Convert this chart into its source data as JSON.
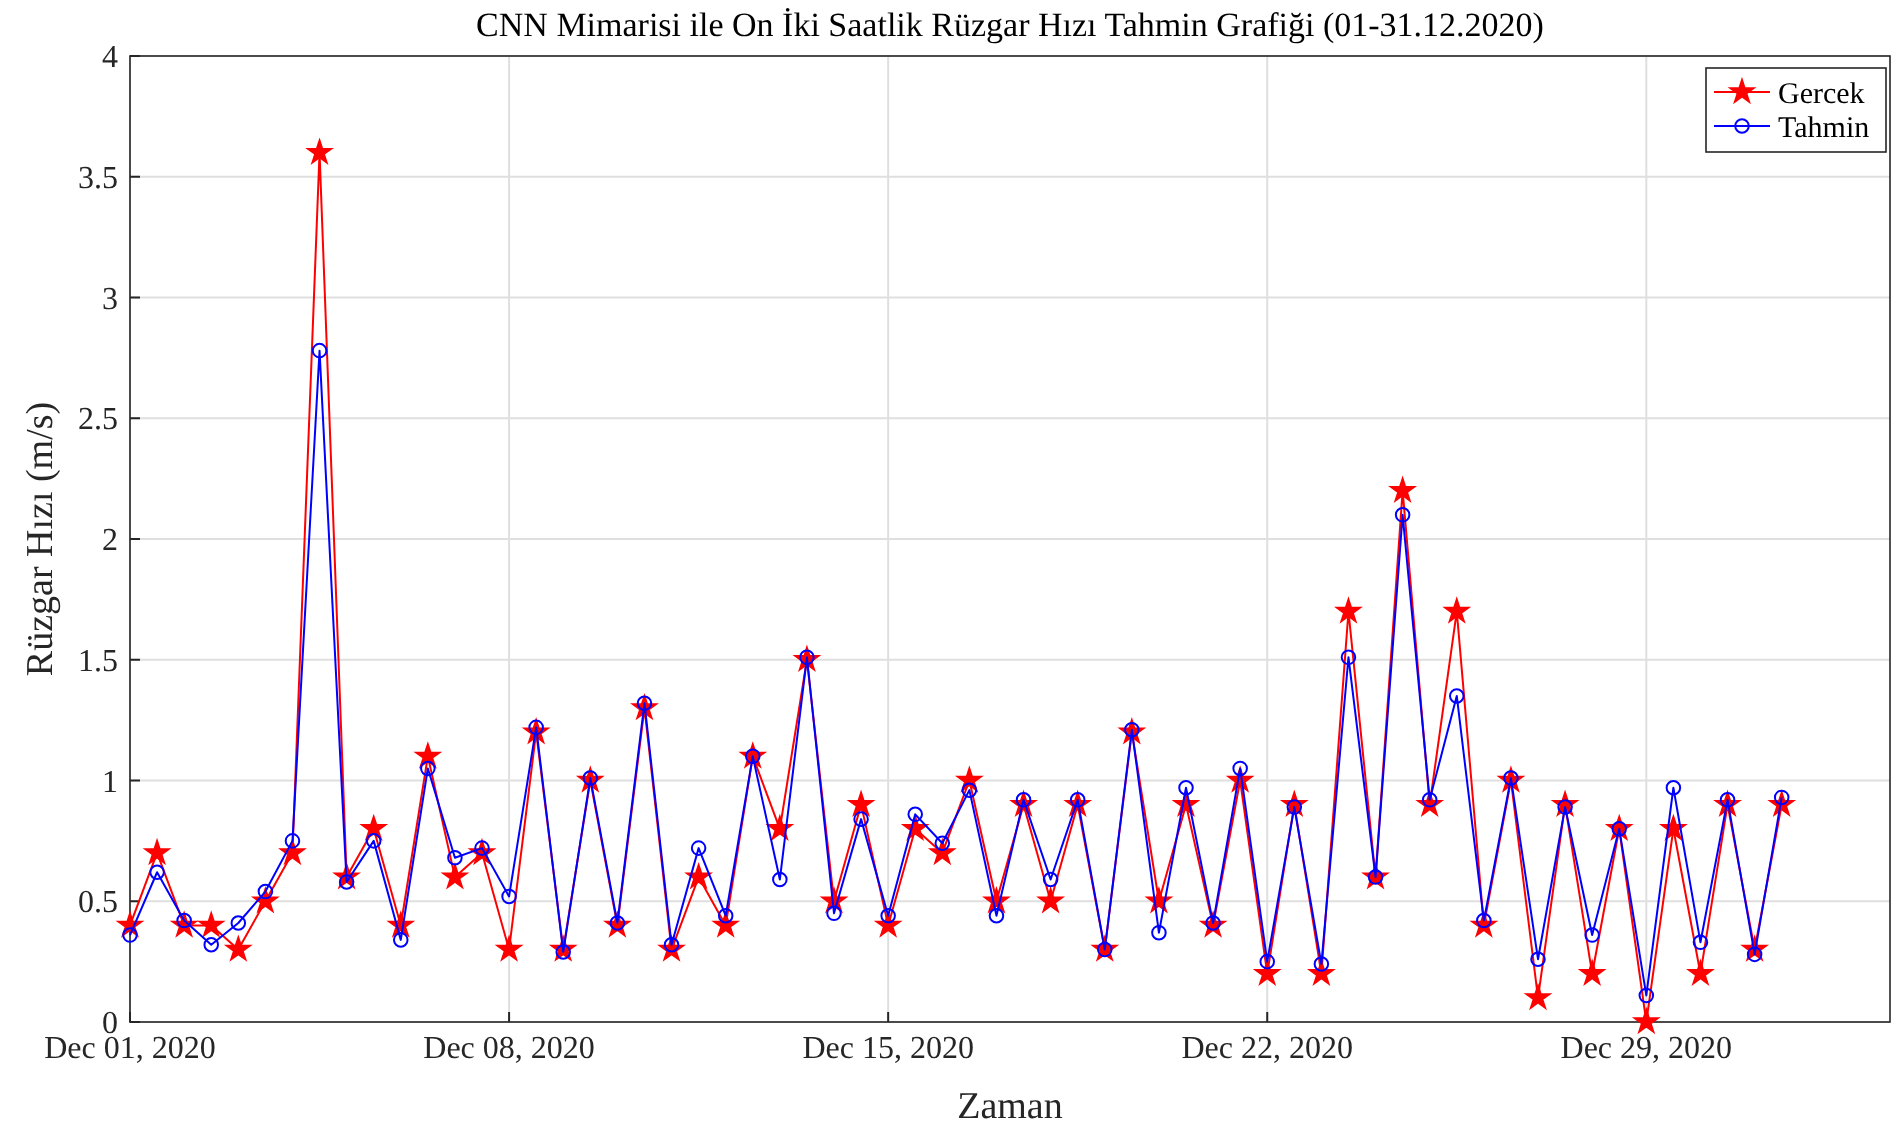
{
  "chart_data": {
    "type": "line",
    "title": "CNN Mimarisi ile On İki Saatlik Rüzgar Hızı Tahmin Grafiği (01-31.12.2020)",
    "xlabel": "Zaman",
    "ylabel": "Rüzgar Hızı (m/s)",
    "x": [
      "2020-12-01T00:00",
      "2020-12-01T12:00",
      "2020-12-02T00:00",
      "2020-12-02T12:00",
      "2020-12-03T00:00",
      "2020-12-03T12:00",
      "2020-12-04T00:00",
      "2020-12-04T12:00",
      "2020-12-05T00:00",
      "2020-12-05T12:00",
      "2020-12-06T00:00",
      "2020-12-06T12:00",
      "2020-12-07T00:00",
      "2020-12-07T12:00",
      "2020-12-08T00:00",
      "2020-12-08T12:00",
      "2020-12-09T00:00",
      "2020-12-09T12:00",
      "2020-12-10T00:00",
      "2020-12-10T12:00",
      "2020-12-11T00:00",
      "2020-12-11T12:00",
      "2020-12-12T00:00",
      "2020-12-12T12:00",
      "2020-12-13T00:00",
      "2020-12-13T12:00",
      "2020-12-14T00:00",
      "2020-12-14T12:00",
      "2020-12-15T00:00",
      "2020-12-15T12:00",
      "2020-12-16T00:00",
      "2020-12-16T12:00",
      "2020-12-17T00:00",
      "2020-12-17T12:00",
      "2020-12-18T00:00",
      "2020-12-18T12:00",
      "2020-12-19T00:00",
      "2020-12-19T12:00",
      "2020-12-20T00:00",
      "2020-12-20T12:00",
      "2020-12-21T00:00",
      "2020-12-21T12:00",
      "2020-12-22T00:00",
      "2020-12-22T12:00",
      "2020-12-23T00:00",
      "2020-12-23T12:00",
      "2020-12-24T00:00",
      "2020-12-24T12:00",
      "2020-12-25T00:00",
      "2020-12-25T12:00",
      "2020-12-26T00:00",
      "2020-12-26T12:00",
      "2020-12-27T00:00",
      "2020-12-27T12:00",
      "2020-12-28T00:00",
      "2020-12-28T12:00",
      "2020-12-29T00:00",
      "2020-12-29T12:00",
      "2020-12-30T00:00",
      "2020-12-30T12:00",
      "2020-12-31T00:00",
      "2020-12-31T12:00"
    ],
    "series": [
      {
        "name": "Gercek",
        "color": "#ff0000",
        "marker": "star",
        "values": [
          0.4,
          0.7,
          0.4,
          0.4,
          0.3,
          0.5,
          0.7,
          3.6,
          0.6,
          0.8,
          0.4,
          1.1,
          0.6,
          0.7,
          0.3,
          1.2,
          0.3,
          1.0,
          0.4,
          1.3,
          0.3,
          0.6,
          0.4,
          1.1,
          0.8,
          1.5,
          0.5,
          0.9,
          0.4,
          0.8,
          0.7,
          1.0,
          0.5,
          0.9,
          0.5,
          0.9,
          0.3,
          1.2,
          0.5,
          0.9,
          0.4,
          1.0,
          0.2,
          0.9,
          0.2,
          1.7,
          0.6,
          2.2,
          0.9,
          1.7,
          0.4,
          1.0,
          0.1,
          0.9,
          0.2,
          0.8,
          0.0,
          0.8,
          0.2,
          0.9,
          0.3,
          0.9
        ]
      },
      {
        "name": "Tahmin",
        "color": "#0000ff",
        "marker": "circle",
        "values": [
          0.36,
          0.62,
          0.42,
          0.32,
          0.41,
          0.54,
          0.75,
          2.78,
          0.58,
          0.75,
          0.34,
          1.05,
          0.68,
          0.72,
          0.52,
          1.22,
          0.29,
          1.01,
          0.41,
          1.32,
          0.32,
          0.72,
          0.44,
          1.1,
          0.59,
          1.51,
          0.45,
          0.84,
          0.44,
          0.86,
          0.74,
          0.96,
          0.44,
          0.92,
          0.59,
          0.92,
          0.3,
          1.21,
          0.37,
          0.97,
          0.41,
          1.05,
          0.25,
          0.89,
          0.24,
          1.51,
          0.6,
          2.1,
          0.92,
          1.35,
          0.42,
          1.01,
          0.26,
          0.89,
          0.36,
          0.8,
          0.11,
          0.97,
          0.33,
          0.92,
          0.28,
          0.93
        ]
      }
    ],
    "xlim": [
      "2020-12-01T00:00",
      "2021-01-02T12:00"
    ],
    "xticks": [
      {
        "value": "2020-12-01",
        "label": "Dec 01, 2020"
      },
      {
        "value": "2020-12-08",
        "label": "Dec 08, 2020"
      },
      {
        "value": "2020-12-15",
        "label": "Dec 15, 2020"
      },
      {
        "value": "2020-12-22",
        "label": "Dec 22, 2020"
      },
      {
        "value": "2020-12-29",
        "label": "Dec 29, 2020"
      }
    ],
    "ylim": [
      0,
      4
    ],
    "yticks": [
      0,
      0.5,
      1,
      1.5,
      2,
      2.5,
      3,
      3.5,
      4
    ],
    "grid": true,
    "legend": "top right",
    "line_style": "solid"
  }
}
